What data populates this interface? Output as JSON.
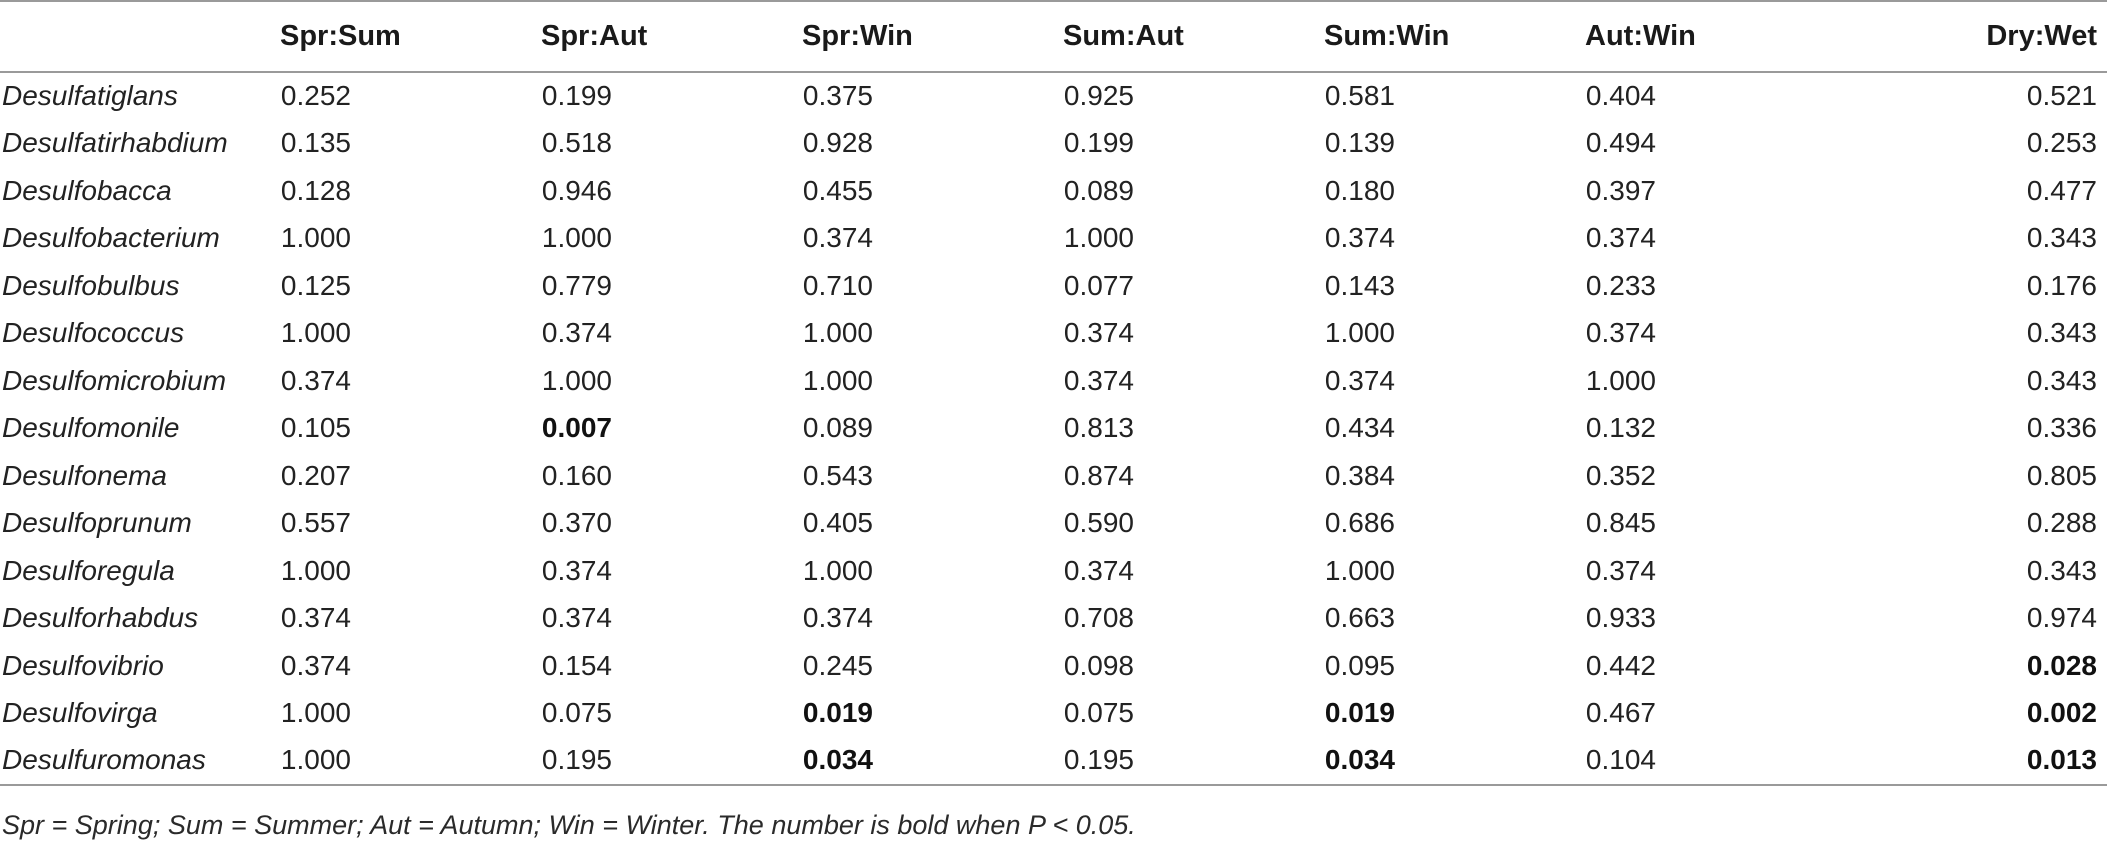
{
  "table": {
    "corner": "",
    "columns": [
      "Spr:Sum",
      "Spr:Aut",
      "Spr:Win",
      "Sum:Aut",
      "Sum:Win",
      "Aut:Win",
      "Dry:Wet"
    ],
    "rows": [
      {
        "taxon": "Desulfatiglans",
        "values": [
          "0.252",
          "0.199",
          "0.375",
          "0.925",
          "0.581",
          "0.404",
          "0.521"
        ],
        "bold": [
          false,
          false,
          false,
          false,
          false,
          false,
          false
        ]
      },
      {
        "taxon": "Desulfatirhabdium",
        "values": [
          "0.135",
          "0.518",
          "0.928",
          "0.199",
          "0.139",
          "0.494",
          "0.253"
        ],
        "bold": [
          false,
          false,
          false,
          false,
          false,
          false,
          false
        ]
      },
      {
        "taxon": "Desulfobacca",
        "values": [
          "0.128",
          "0.946",
          "0.455",
          "0.089",
          "0.180",
          "0.397",
          "0.477"
        ],
        "bold": [
          false,
          false,
          false,
          false,
          false,
          false,
          false
        ]
      },
      {
        "taxon": "Desulfobacterium",
        "values": [
          "1.000",
          "1.000",
          "0.374",
          "1.000",
          "0.374",
          "0.374",
          "0.343"
        ],
        "bold": [
          false,
          false,
          false,
          false,
          false,
          false,
          false
        ]
      },
      {
        "taxon": "Desulfobulbus",
        "values": [
          "0.125",
          "0.779",
          "0.710",
          "0.077",
          "0.143",
          "0.233",
          "0.176"
        ],
        "bold": [
          false,
          false,
          false,
          false,
          false,
          false,
          false
        ]
      },
      {
        "taxon": "Desulfococcus",
        "values": [
          "1.000",
          "0.374",
          "1.000",
          "0.374",
          "1.000",
          "0.374",
          "0.343"
        ],
        "bold": [
          false,
          false,
          false,
          false,
          false,
          false,
          false
        ]
      },
      {
        "taxon": "Desulfomicrobium",
        "values": [
          "0.374",
          "1.000",
          "1.000",
          "0.374",
          "0.374",
          "1.000",
          "0.343"
        ],
        "bold": [
          false,
          false,
          false,
          false,
          false,
          false,
          false
        ]
      },
      {
        "taxon": "Desulfomonile",
        "values": [
          "0.105",
          "0.007",
          "0.089",
          "0.813",
          "0.434",
          "0.132",
          "0.336"
        ],
        "bold": [
          false,
          true,
          false,
          false,
          false,
          false,
          false
        ]
      },
      {
        "taxon": "Desulfonema",
        "values": [
          "0.207",
          "0.160",
          "0.543",
          "0.874",
          "0.384",
          "0.352",
          "0.805"
        ],
        "bold": [
          false,
          false,
          false,
          false,
          false,
          false,
          false
        ]
      },
      {
        "taxon": "Desulfoprunum",
        "values": [
          "0.557",
          "0.370",
          "0.405",
          "0.590",
          "0.686",
          "0.845",
          "0.288"
        ],
        "bold": [
          false,
          false,
          false,
          false,
          false,
          false,
          false
        ]
      },
      {
        "taxon": "Desulforegula",
        "values": [
          "1.000",
          "0.374",
          "1.000",
          "0.374",
          "1.000",
          "0.374",
          "0.343"
        ],
        "bold": [
          false,
          false,
          false,
          false,
          false,
          false,
          false
        ]
      },
      {
        "taxon": "Desulforhabdus",
        "values": [
          "0.374",
          "0.374",
          "0.374",
          "0.708",
          "0.663",
          "0.933",
          "0.974"
        ],
        "bold": [
          false,
          false,
          false,
          false,
          false,
          false,
          false
        ]
      },
      {
        "taxon": "Desulfovibrio",
        "values": [
          "0.374",
          "0.154",
          "0.245",
          "0.098",
          "0.095",
          "0.442",
          "0.028"
        ],
        "bold": [
          false,
          false,
          false,
          false,
          false,
          false,
          true
        ]
      },
      {
        "taxon": "Desulfovirga",
        "values": [
          "1.000",
          "0.075",
          "0.019",
          "0.075",
          "0.019",
          "0.467",
          "0.002"
        ],
        "bold": [
          false,
          false,
          true,
          false,
          true,
          false,
          true
        ]
      },
      {
        "taxon": "Desulfuromonas",
        "values": [
          "1.000",
          "0.195",
          "0.034",
          "0.195",
          "0.034",
          "0.104",
          "0.013"
        ],
        "bold": [
          false,
          false,
          true,
          false,
          true,
          false,
          true
        ]
      }
    ]
  },
  "footnote": "Spr = Spring; Sum = Summer; Aut = Autumn; Win = Winter. The number is bold when P < 0.05."
}
